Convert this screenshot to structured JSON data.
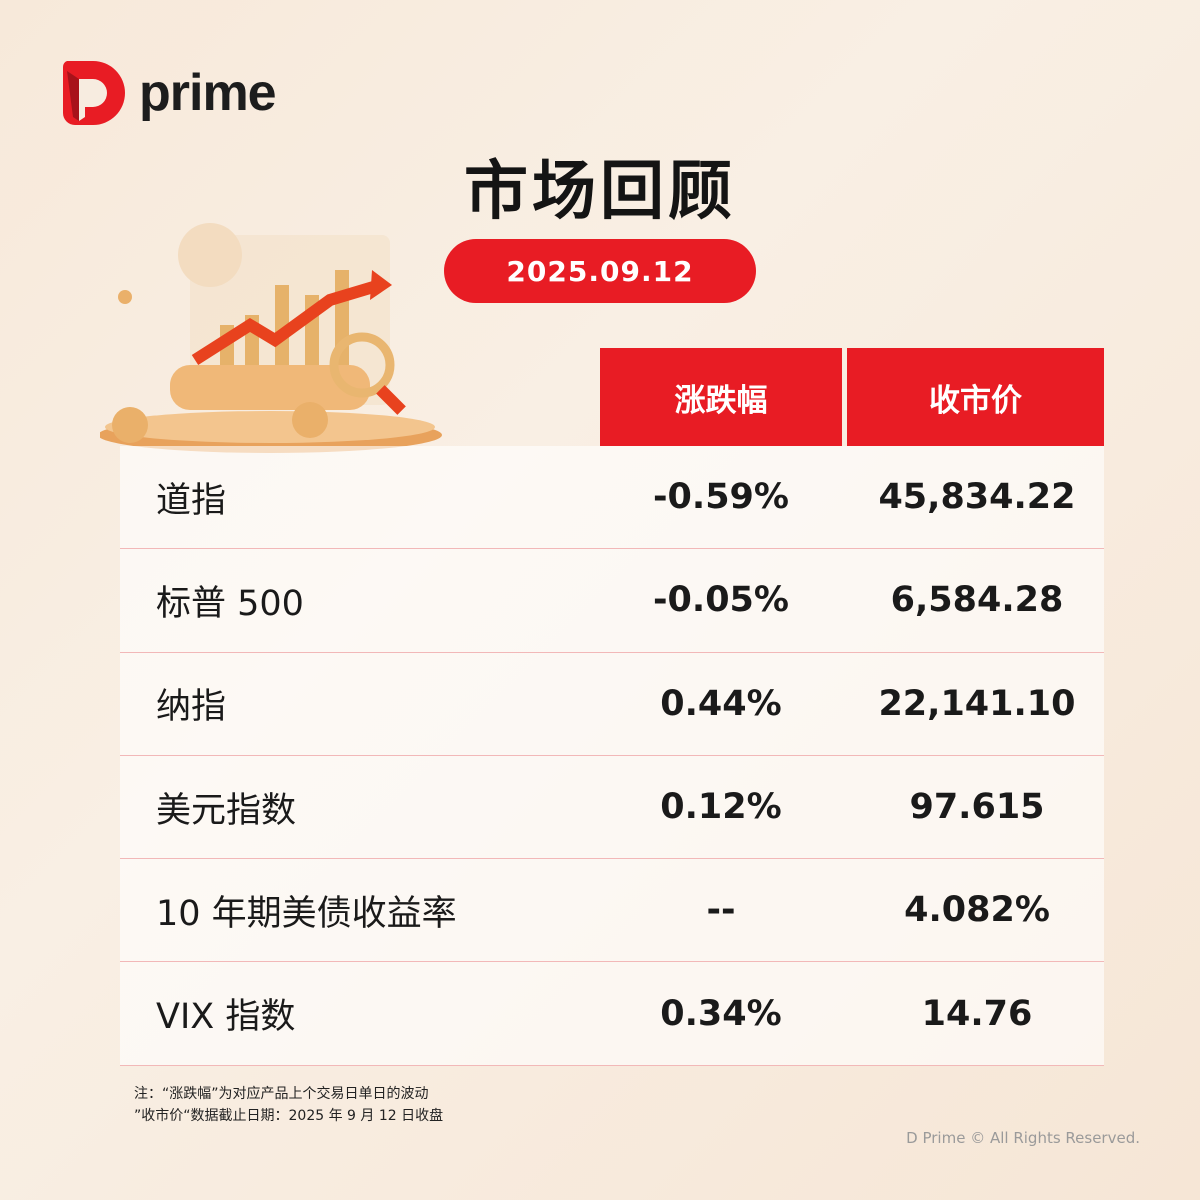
{
  "brand": {
    "name": "prime",
    "color": "#e81c24"
  },
  "title": "市场回顾",
  "date": "2025.09.12",
  "table": {
    "headers": [
      "涨跌幅",
      "收市价"
    ],
    "rows": [
      {
        "name": "道指",
        "change": "-0.59%",
        "close": "45,834.22"
      },
      {
        "name": "标普 500",
        "change": "-0.05%",
        "close": "6,584.28"
      },
      {
        "name": "纳指",
        "change": "0.44%",
        "close": "22,141.10"
      },
      {
        "name": "美元指数",
        "change": "0.12%",
        "close": "97.615"
      },
      {
        "name": "10 年期美债收益率",
        "change": "--",
        "close": "4.082%"
      },
      {
        "name": "VIX 指数",
        "change": "0.34%",
        "close": "14.76"
      }
    ]
  },
  "notes": [
    "注：“涨跌幅”为对应产品上个交易日单日的波动",
    "”收市价“数据截止日期：2025 年 9 月 12 日收盘"
  ],
  "copyright": "D Prime © All Rights Reserved."
}
